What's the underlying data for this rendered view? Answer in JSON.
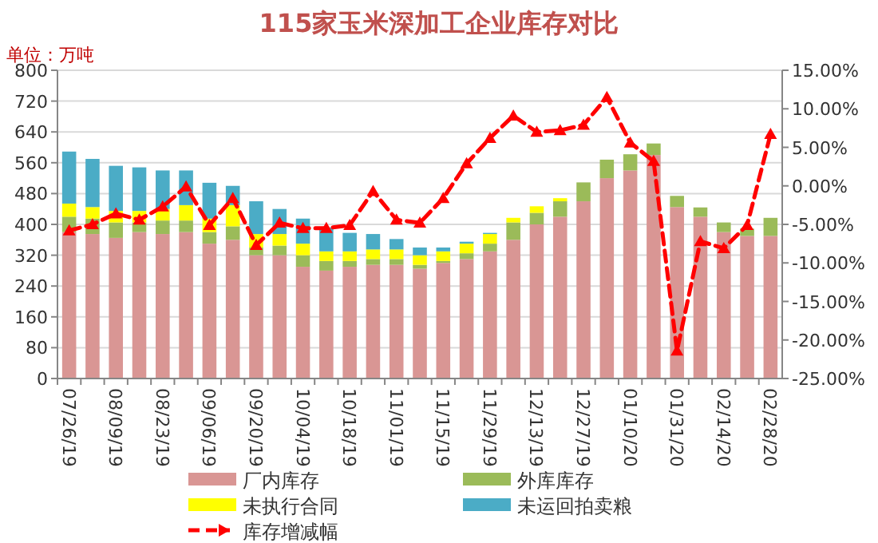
{
  "chart_data": {
    "type": "bar",
    "title": "115家玉米深加工企业库存对比",
    "annotations": [
      "单位：万吨"
    ],
    "categories": [
      "07/26/19",
      null,
      "08/09/19",
      null,
      "08/23/19",
      null,
      "09/06/19",
      null,
      "09/20/19",
      null,
      "10/04/19",
      null,
      "10/18/19",
      null,
      "11/01/19",
      null,
      "11/15/19",
      null,
      "11/29/19",
      null,
      "12/13/19",
      null,
      "12/27/19",
      null,
      "01/10/20",
      null,
      "01/31/20",
      null,
      "02/14/20",
      null,
      "02/28/20"
    ],
    "stacked": true,
    "series": [
      {
        "name": "厂内库存",
        "color": "#d99694",
        "values": [
          380,
          375,
          365,
          380,
          375,
          380,
          350,
          360,
          320,
          320,
          290,
          280,
          290,
          295,
          295,
          285,
          300,
          310,
          330,
          360,
          400,
          420,
          460,
          520,
          540,
          580,
          445,
          420,
          380,
          370,
          370
        ]
      },
      {
        "name": "外库库存",
        "color": "#9bbb59",
        "values": [
          40,
          40,
          40,
          25,
          35,
          30,
          30,
          35,
          20,
          25,
          30,
          25,
          15,
          15,
          15,
          10,
          5,
          15,
          20,
          45,
          30,
          40,
          49,
          48,
          42,
          30,
          29,
          24,
          25,
          19,
          47
        ]
      },
      {
        "name": "未执行合同",
        "color": "#ffff00",
        "values": [
          34,
          30,
          30,
          30,
          30,
          40,
          35,
          55,
          35,
          30,
          30,
          25,
          25,
          25,
          25,
          25,
          25,
          25,
          25,
          12,
          17,
          8,
          null,
          null,
          null,
          null,
          null,
          null,
          null,
          null,
          null
        ]
      },
      {
        "name": "未运回拍卖粮",
        "color": "#4bacc6",
        "values": [
          135,
          125,
          117,
          113,
          100,
          90,
          93,
          50,
          85,
          65,
          65,
          62,
          48,
          40,
          27,
          20,
          10,
          5,
          3,
          null,
          null,
          null,
          null,
          null,
          null,
          null,
          null,
          null,
          null,
          null,
          null
        ]
      },
      {
        "name": "库存增减幅",
        "type": "line",
        "axis": "y2",
        "color": "#ff0000",
        "line_style": "dashed",
        "marker": "triangle",
        "values": [
          -5.8,
          -5.0,
          -3.6,
          -4.4,
          -2.7,
          -0.1,
          -5.1,
          -1.6,
          -7.7,
          -4.8,
          -5.5,
          -5.5,
          -5.1,
          -0.7,
          -4.4,
          -4.8,
          -1.6,
          2.9,
          6.2,
          9.1,
          7.0,
          7.2,
          7.9,
          11.5,
          5.6,
          3.2,
          -21.4,
          -7.2,
          -8.1,
          -5.1,
          6.7
        ]
      }
    ],
    "ylim": [
      0,
      800
    ],
    "yticks": [
      0,
      80,
      160,
      240,
      320,
      400,
      480,
      560,
      640,
      720,
      800
    ],
    "y2lim": [
      -25,
      15
    ],
    "y2ticks": [
      {
        "value": -25,
        "label": "-25.00%"
      },
      {
        "value": -20,
        "label": "-20.00%"
      },
      {
        "value": -15,
        "label": "-15.00%"
      },
      {
        "value": -10,
        "label": "-10.00%"
      },
      {
        "value": -5,
        "label": "-5.00%"
      },
      {
        "value": 0,
        "label": "0.00%"
      },
      {
        "value": 5,
        "label": "5.00%"
      },
      {
        "value": 10,
        "label": "10.00%"
      },
      {
        "value": 15,
        "label": "15.00%"
      }
    ],
    "grid": "y",
    "legend": "bottom"
  }
}
